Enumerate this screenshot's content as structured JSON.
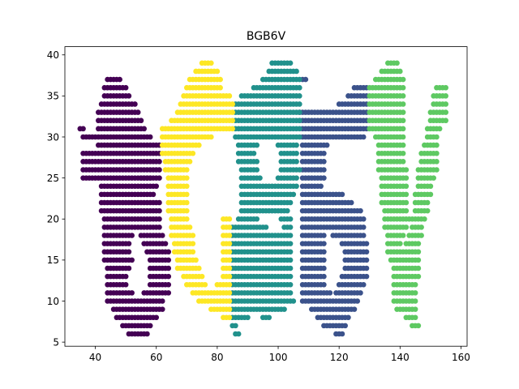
{
  "chart_data": {
    "type": "scatter",
    "title": "BGB6V",
    "xlabel": "",
    "ylabel": "",
    "xlim": [
      30,
      162
    ],
    "ylim": [
      4.5,
      41
    ],
    "xticks": [
      40,
      60,
      80,
      100,
      120,
      140,
      160
    ],
    "yticks": [
      5,
      10,
      15,
      20,
      25,
      30,
      35,
      40
    ],
    "grid": false,
    "legend": "none",
    "point_size": 6.5,
    "series": [
      {
        "color": "#440154",
        "rows": [
          [
            37,
            44,
            48
          ],
          [
            36,
            43,
            50
          ],
          [
            35,
            43,
            51
          ],
          [
            34,
            42,
            53
          ],
          [
            33,
            41,
            54
          ],
          [
            32,
            41,
            55
          ],
          [
            31,
            35,
            36
          ],
          [
            31,
            41,
            56
          ],
          [
            30,
            36,
            58
          ],
          [
            29,
            41,
            61
          ],
          [
            28,
            36,
            61
          ],
          [
            27,
            36,
            61
          ],
          [
            26,
            36,
            61
          ],
          [
            25,
            36,
            58
          ],
          [
            25,
            55,
            61
          ],
          [
            24,
            42,
            60
          ],
          [
            23,
            42,
            59
          ],
          [
            22,
            42,
            61
          ],
          [
            21,
            42,
            61
          ],
          [
            20,
            43,
            61
          ],
          [
            19,
            43,
            61
          ],
          [
            18,
            43,
            52
          ],
          [
            18,
            55,
            62
          ],
          [
            17,
            43,
            51
          ],
          [
            17,
            56,
            63
          ],
          [
            16,
            43,
            51
          ],
          [
            16,
            57,
            64
          ],
          [
            15,
            43,
            52
          ],
          [
            15,
            58,
            64
          ],
          [
            14,
            44,
            51
          ],
          [
            14,
            58,
            64
          ],
          [
            13,
            44,
            50
          ],
          [
            13,
            58,
            64
          ],
          [
            12,
            44,
            50
          ],
          [
            12,
            58,
            64
          ],
          [
            11,
            44,
            52
          ],
          [
            11,
            56,
            64
          ],
          [
            10,
            44,
            62
          ],
          [
            9,
            46,
            62
          ],
          [
            8,
            47,
            60
          ],
          [
            7,
            49,
            58
          ],
          [
            6,
            51,
            57
          ]
        ]
      },
      {
        "color": "#3b528b",
        "rows": [
          [
            37,
            108,
            109
          ],
          [
            36,
            125,
            129
          ],
          [
            35,
            123,
            129
          ],
          [
            34,
            120,
            129
          ],
          [
            33,
            107,
            129
          ],
          [
            32,
            107,
            129
          ],
          [
            31,
            108,
            129
          ],
          [
            30,
            108,
            128
          ],
          [
            29,
            108,
            116
          ],
          [
            28,
            108,
            115
          ],
          [
            27,
            108,
            115
          ],
          [
            26,
            108,
            115
          ],
          [
            25,
            108,
            115
          ],
          [
            24,
            108,
            114
          ],
          [
            23,
            108,
            121
          ],
          [
            22,
            108,
            124
          ],
          [
            21,
            108,
            127
          ],
          [
            20,
            108,
            128
          ],
          [
            19,
            108,
            128
          ],
          [
            18,
            108,
            115
          ],
          [
            18,
            118,
            128
          ],
          [
            17,
            108,
            115
          ],
          [
            17,
            121,
            129
          ],
          [
            16,
            108,
            115
          ],
          [
            16,
            122,
            129
          ],
          [
            15,
            108,
            115
          ],
          [
            15,
            122,
            129
          ],
          [
            14,
            108,
            115
          ],
          [
            14,
            122,
            129
          ],
          [
            13,
            108,
            115
          ],
          [
            13,
            121,
            129
          ],
          [
            12,
            108,
            115
          ],
          [
            12,
            120,
            128
          ],
          [
            11,
            108,
            117
          ],
          [
            11,
            119,
            127
          ],
          [
            10,
            108,
            126
          ],
          [
            9,
            111,
            125
          ],
          [
            8,
            113,
            123
          ],
          [
            7,
            115,
            122
          ],
          [
            6,
            119,
            121
          ]
        ]
      },
      {
        "color": "#21918c",
        "rows": [
          [
            39,
            98,
            104
          ],
          [
            38,
            97,
            106
          ],
          [
            37,
            95,
            107
          ],
          [
            36,
            92,
            107
          ],
          [
            35,
            88,
            107
          ],
          [
            34,
            86,
            107
          ],
          [
            33,
            86,
            107
          ],
          [
            32,
            86,
            107
          ],
          [
            31,
            86,
            107
          ],
          [
            30,
            86,
            107
          ],
          [
            29,
            87,
            93
          ],
          [
            29,
            100,
            106
          ],
          [
            28,
            87,
            92
          ],
          [
            28,
            101,
            106
          ],
          [
            27,
            87,
            93
          ],
          [
            27,
            101,
            106
          ],
          [
            26,
            88,
            93
          ],
          [
            26,
            101,
            107
          ],
          [
            25,
            88,
            94
          ],
          [
            25,
            100,
            106
          ],
          [
            24,
            88,
            106
          ],
          [
            23,
            88,
            105
          ],
          [
            22,
            88,
            104
          ],
          [
            21,
            88,
            103
          ],
          [
            20,
            87,
            93
          ],
          [
            20,
            101,
            104
          ],
          [
            19,
            85,
            96
          ],
          [
            19,
            102,
            104
          ],
          [
            18,
            85,
            104
          ],
          [
            17,
            85,
            104
          ],
          [
            16,
            85,
            104
          ],
          [
            15,
            85,
            104
          ],
          [
            14,
            85,
            104
          ],
          [
            13,
            85,
            104
          ],
          [
            12,
            85,
            104
          ],
          [
            11,
            85,
            104
          ],
          [
            10,
            85,
            105
          ],
          [
            9,
            85,
            102
          ],
          [
            8,
            85,
            90
          ],
          [
            8,
            95,
            97
          ],
          [
            7,
            85,
            86
          ],
          [
            6,
            86,
            87
          ]
        ]
      },
      {
        "color": "#5ec962",
        "rows": [
          [
            39,
            136,
            139
          ],
          [
            38,
            134,
            140
          ],
          [
            37,
            132,
            141
          ],
          [
            36,
            130,
            141
          ],
          [
            36,
            152,
            155
          ],
          [
            35,
            130,
            141
          ],
          [
            35,
            151,
            155
          ],
          [
            34,
            130,
            141
          ],
          [
            34,
            151,
            155
          ],
          [
            33,
            130,
            141
          ],
          [
            33,
            150,
            155
          ],
          [
            32,
            130,
            141
          ],
          [
            32,
            150,
            155
          ],
          [
            31,
            130,
            141
          ],
          [
            31,
            149,
            153
          ],
          [
            30,
            132,
            141
          ],
          [
            30,
            149,
            152
          ],
          [
            29,
            133,
            141
          ],
          [
            29,
            148,
            152
          ],
          [
            28,
            133,
            141
          ],
          [
            28,
            147,
            152
          ],
          [
            27,
            133,
            141
          ],
          [
            27,
            147,
            152
          ],
          [
            26,
            133,
            142
          ],
          [
            26,
            146,
            152
          ],
          [
            25,
            134,
            142
          ],
          [
            25,
            146,
            151
          ],
          [
            24,
            134,
            142
          ],
          [
            24,
            146,
            150
          ],
          [
            23,
            134,
            142
          ],
          [
            23,
            145,
            150
          ],
          [
            22,
            134,
            142
          ],
          [
            22,
            145,
            149
          ],
          [
            21,
            135,
            142
          ],
          [
            21,
            145,
            149
          ],
          [
            20,
            135,
            143
          ],
          [
            20,
            144,
            148
          ],
          [
            19,
            135,
            142
          ],
          [
            19,
            144,
            147
          ],
          [
            18,
            136,
            141
          ],
          [
            18,
            143,
            147
          ],
          [
            17,
            136,
            140
          ],
          [
            17,
            142,
            146
          ],
          [
            16,
            136,
            146
          ],
          [
            15,
            137,
            146
          ],
          [
            14,
            138,
            146
          ],
          [
            13,
            138,
            146
          ],
          [
            12,
            138,
            145
          ],
          [
            11,
            138,
            145
          ],
          [
            10,
            138,
            145
          ],
          [
            9,
            139,
            145
          ],
          [
            8,
            142,
            145
          ],
          [
            7,
            144,
            146
          ]
        ]
      },
      {
        "color": "#fde725",
        "rows": [
          [
            39,
            75,
            78
          ],
          [
            38,
            73,
            80
          ],
          [
            37,
            71,
            81
          ],
          [
            36,
            70,
            81
          ],
          [
            35,
            69,
            84
          ],
          [
            34,
            68,
            85
          ],
          [
            33,
            67,
            85
          ],
          [
            32,
            65,
            85
          ],
          [
            31,
            62,
            85
          ],
          [
            30,
            62,
            78
          ],
          [
            29,
            62,
            74
          ],
          [
            28,
            62,
            72
          ],
          [
            27,
            63,
            71
          ],
          [
            26,
            63,
            70
          ],
          [
            25,
            64,
            70
          ],
          [
            24,
            64,
            70
          ],
          [
            23,
            64,
            70
          ],
          [
            22,
            64,
            70
          ],
          [
            21,
            64,
            70
          ],
          [
            20,
            65,
            70
          ],
          [
            20,
            82,
            84
          ],
          [
            19,
            65,
            71
          ],
          [
            19,
            82,
            84
          ],
          [
            18,
            65,
            72
          ],
          [
            18,
            82,
            84
          ],
          [
            17,
            66,
            72
          ],
          [
            17,
            82,
            84
          ],
          [
            16,
            66,
            72
          ],
          [
            16,
            82,
            84
          ],
          [
            15,
            67,
            73
          ],
          [
            15,
            82,
            84
          ],
          [
            14,
            67,
            74
          ],
          [
            14,
            82,
            84
          ],
          [
            13,
            69,
            75
          ],
          [
            13,
            82,
            84
          ],
          [
            12,
            70,
            76
          ],
          [
            12,
            80,
            84
          ],
          [
            11,
            72,
            84
          ],
          [
            10,
            74,
            84
          ],
          [
            9,
            78,
            84
          ],
          [
            8,
            82,
            84
          ]
        ]
      }
    ]
  }
}
